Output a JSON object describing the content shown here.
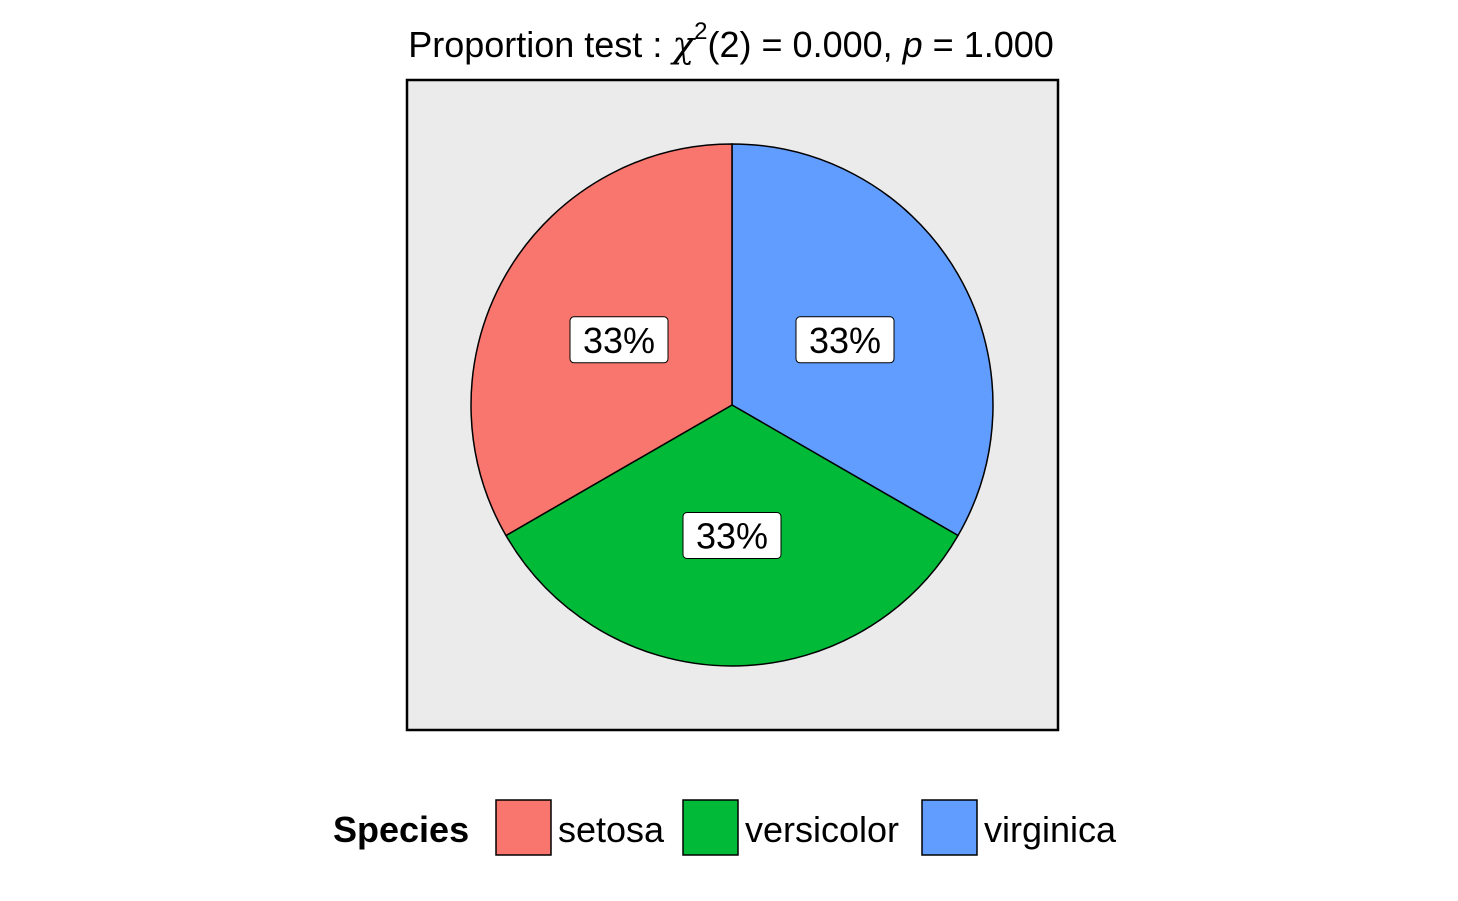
{
  "chart_data": {
    "type": "pie",
    "title": {
      "prefix": "Proportion test : ",
      "chi": "χ",
      "superscript": "2",
      "df_text": "(2) = 0.000, ",
      "p_symbol": "p",
      "p_text": " = 1.000"
    },
    "categories": [
      "setosa",
      "versicolor",
      "virginica"
    ],
    "values": [
      33.33,
      33.33,
      33.33
    ],
    "slice_labels": [
      "33%",
      "33%",
      "33%"
    ],
    "colors": [
      "#F8766D",
      "#00BA38",
      "#619CFF"
    ],
    "panel_background": "#EBEBEB",
    "legend": {
      "title": "Species",
      "position": "bottom"
    }
  }
}
